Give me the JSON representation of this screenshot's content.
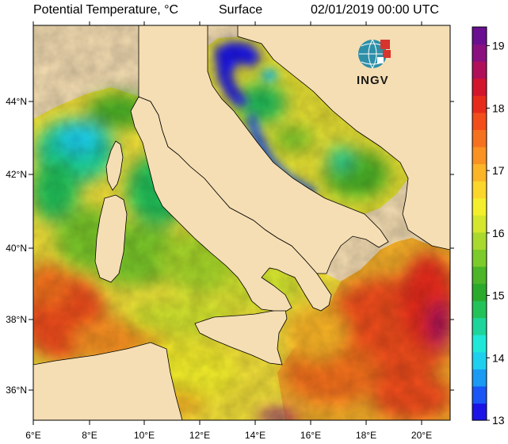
{
  "header": {
    "title": "Potential Temperature, °C",
    "level": "Surface",
    "datetime": "02/01/2019 00:00 UTC"
  },
  "logo": {
    "text": "INGV",
    "icon": "globe-icon"
  },
  "axes": {
    "lon_ticks": [
      "6°E",
      "8°E",
      "10°E",
      "12°E",
      "14°E",
      "16°E",
      "18°E",
      "20°E"
    ],
    "lat_ticks": [
      "44°N",
      "42°N",
      "40°N",
      "38°N",
      "36°N"
    ]
  },
  "colorbar": {
    "min": 13,
    "max": 19.3,
    "labels": [
      "19",
      "18",
      "17",
      "16",
      "15",
      "14",
      "13"
    ],
    "colors": [
      "#1c14e6",
      "#1a55f5",
      "#1a9af2",
      "#1fd0ee",
      "#20e8d8",
      "#1dd49a",
      "#22c25a",
      "#2aaa2a",
      "#4cb528",
      "#7ccb2a",
      "#a9d92c",
      "#d4e62d",
      "#f4ef2c",
      "#fbd62b",
      "#fbb526",
      "#f99222",
      "#f6711e",
      "#f24d1b",
      "#e72b1b",
      "#d3142d",
      "#b0105a",
      "#8a1080",
      "#6a0f90"
    ]
  },
  "colors": {
    "land": "#f5deb3",
    "background": "#ffffff"
  }
}
